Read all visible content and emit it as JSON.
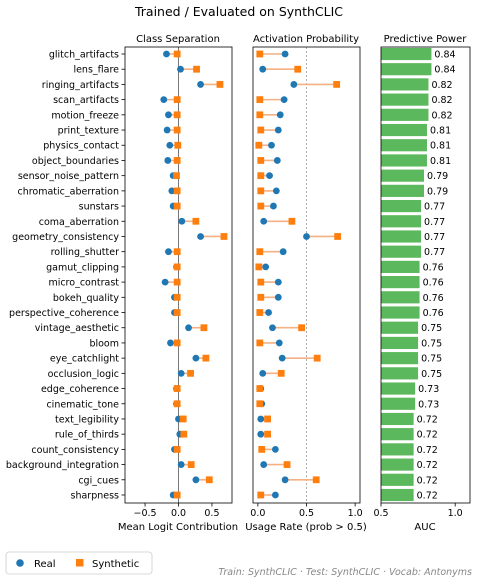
{
  "figure": {
    "title": "Trained / Evaluated on SynthCLIC",
    "footer": "Train: SynthCLIC · Test: SynthCLIC · Vocab: Antonyms",
    "legend": [
      {
        "label": "Real",
        "color": "#1f77b4",
        "marker": "circle"
      },
      {
        "label": "Synthetic",
        "color": "#ff7f0e",
        "marker": "square"
      }
    ]
  },
  "chart_data": [
    {
      "type": "scatter",
      "title": "Class Separation",
      "xlabel": "Mean Logit Contribution",
      "xlim": [
        -0.8,
        0.8
      ],
      "xticks": [
        -0.5,
        0.0,
        0.5
      ],
      "xtick_labels": [
        "−0.5",
        "0.0",
        "0.5"
      ],
      "categories": [
        "glitch_artifacts",
        "lens_flare",
        "ringing_artifacts",
        "scan_artifacts",
        "motion_freeze",
        "print_texture",
        "physics_contact",
        "object_boundaries",
        "sensor_noise_pattern",
        "chromatic_aberration",
        "sunstars",
        "coma_aberration",
        "geometry_consistency",
        "rolling_shutter",
        "gamut_clipping",
        "micro_contrast",
        "bokeh_quality",
        "perspective_coherence",
        "vintage_aesthetic",
        "bloom",
        "eye_catchlight",
        "occlusion_logic",
        "edge_coherence",
        "cinematic_tone",
        "text_legibility",
        "rule_of_thirds",
        "count_consistency",
        "background_integration",
        "cgi_cues",
        "sharpness"
      ],
      "series": [
        {
          "name": "Real",
          "color": "#1f77b4",
          "values": [
            -0.18,
            0.03,
            0.33,
            -0.22,
            -0.15,
            -0.17,
            -0.13,
            -0.16,
            -0.08,
            -0.1,
            -0.08,
            0.05,
            0.33,
            -0.15,
            -0.03,
            -0.2,
            -0.06,
            -0.06,
            0.15,
            -0.12,
            0.26,
            0.04,
            -0.03,
            -0.03,
            0.0,
            0.02,
            -0.06,
            0.04,
            0.26,
            -0.08
          ]
        },
        {
          "name": "Synthetic",
          "color": "#ff7f0e",
          "values": [
            -0.02,
            0.27,
            0.62,
            -0.02,
            -0.02,
            -0.02,
            -0.01,
            -0.02,
            -0.03,
            -0.02,
            -0.02,
            0.26,
            0.68,
            -0.02,
            -0.02,
            -0.02,
            -0.02,
            -0.02,
            0.38,
            -0.02,
            0.41,
            0.18,
            -0.02,
            -0.02,
            0.07,
            0.08,
            -0.02,
            0.19,
            0.46,
            -0.02
          ]
        }
      ]
    },
    {
      "type": "scatter",
      "title": "Activation Probability",
      "xlabel": "Usage Rate (prob > 0.5)",
      "xlim": [
        -0.05,
        1.05
      ],
      "xticks": [
        0.0,
        0.5,
        1.0
      ],
      "xtick_labels": [
        "0.0",
        "0.5",
        "1.0"
      ],
      "series": [
        {
          "name": "Real",
          "color": "#1f77b4",
          "values": [
            0.28,
            0.05,
            0.37,
            0.27,
            0.23,
            0.21,
            0.14,
            0.2,
            0.12,
            0.19,
            0.16,
            0.06,
            0.5,
            0.26,
            0.08,
            0.21,
            0.21,
            0.11,
            0.15,
            0.22,
            0.25,
            0.05,
            0.03,
            0.04,
            0.03,
            0.03,
            0.18,
            0.06,
            0.28,
            0.18
          ]
        },
        {
          "name": "Synthetic",
          "color": "#ff7f0e",
          "values": [
            0.02,
            0.41,
            0.81,
            0.02,
            0.02,
            0.03,
            0.01,
            0.03,
            0.03,
            0.03,
            0.03,
            0.35,
            0.82,
            0.02,
            0.01,
            0.03,
            0.03,
            0.02,
            0.45,
            0.02,
            0.61,
            0.24,
            0.02,
            0.02,
            0.1,
            0.1,
            0.04,
            0.3,
            0.6,
            0.03
          ]
        }
      ]
    },
    {
      "type": "bar",
      "title": "Predictive Power",
      "xlabel": "AUC",
      "orientation": "horizontal",
      "xlim": [
        0.5,
        1.1
      ],
      "xticks": [
        0.5,
        1.0
      ],
      "xtick_labels": [
        "0.5",
        "1.0"
      ],
      "color": "#5cb85c",
      "values": [
        0.84,
        0.84,
        0.82,
        0.82,
        0.82,
        0.81,
        0.81,
        0.81,
        0.79,
        0.79,
        0.77,
        0.77,
        0.77,
        0.77,
        0.76,
        0.76,
        0.76,
        0.76,
        0.75,
        0.75,
        0.75,
        0.75,
        0.73,
        0.73,
        0.72,
        0.72,
        0.72,
        0.72,
        0.72,
        0.72
      ],
      "value_labels": [
        "0.84",
        "0.84",
        "0.82",
        "0.82",
        "0.82",
        "0.81",
        "0.81",
        "0.81",
        "0.79",
        "0.79",
        "0.77",
        "0.77",
        "0.77",
        "0.77",
        "0.76",
        "0.76",
        "0.76",
        "0.76",
        "0.75",
        "0.75",
        "0.75",
        "0.75",
        "0.73",
        "0.73",
        "0.72",
        "0.72",
        "0.72",
        "0.72",
        "0.72",
        "0.72"
      ]
    }
  ]
}
